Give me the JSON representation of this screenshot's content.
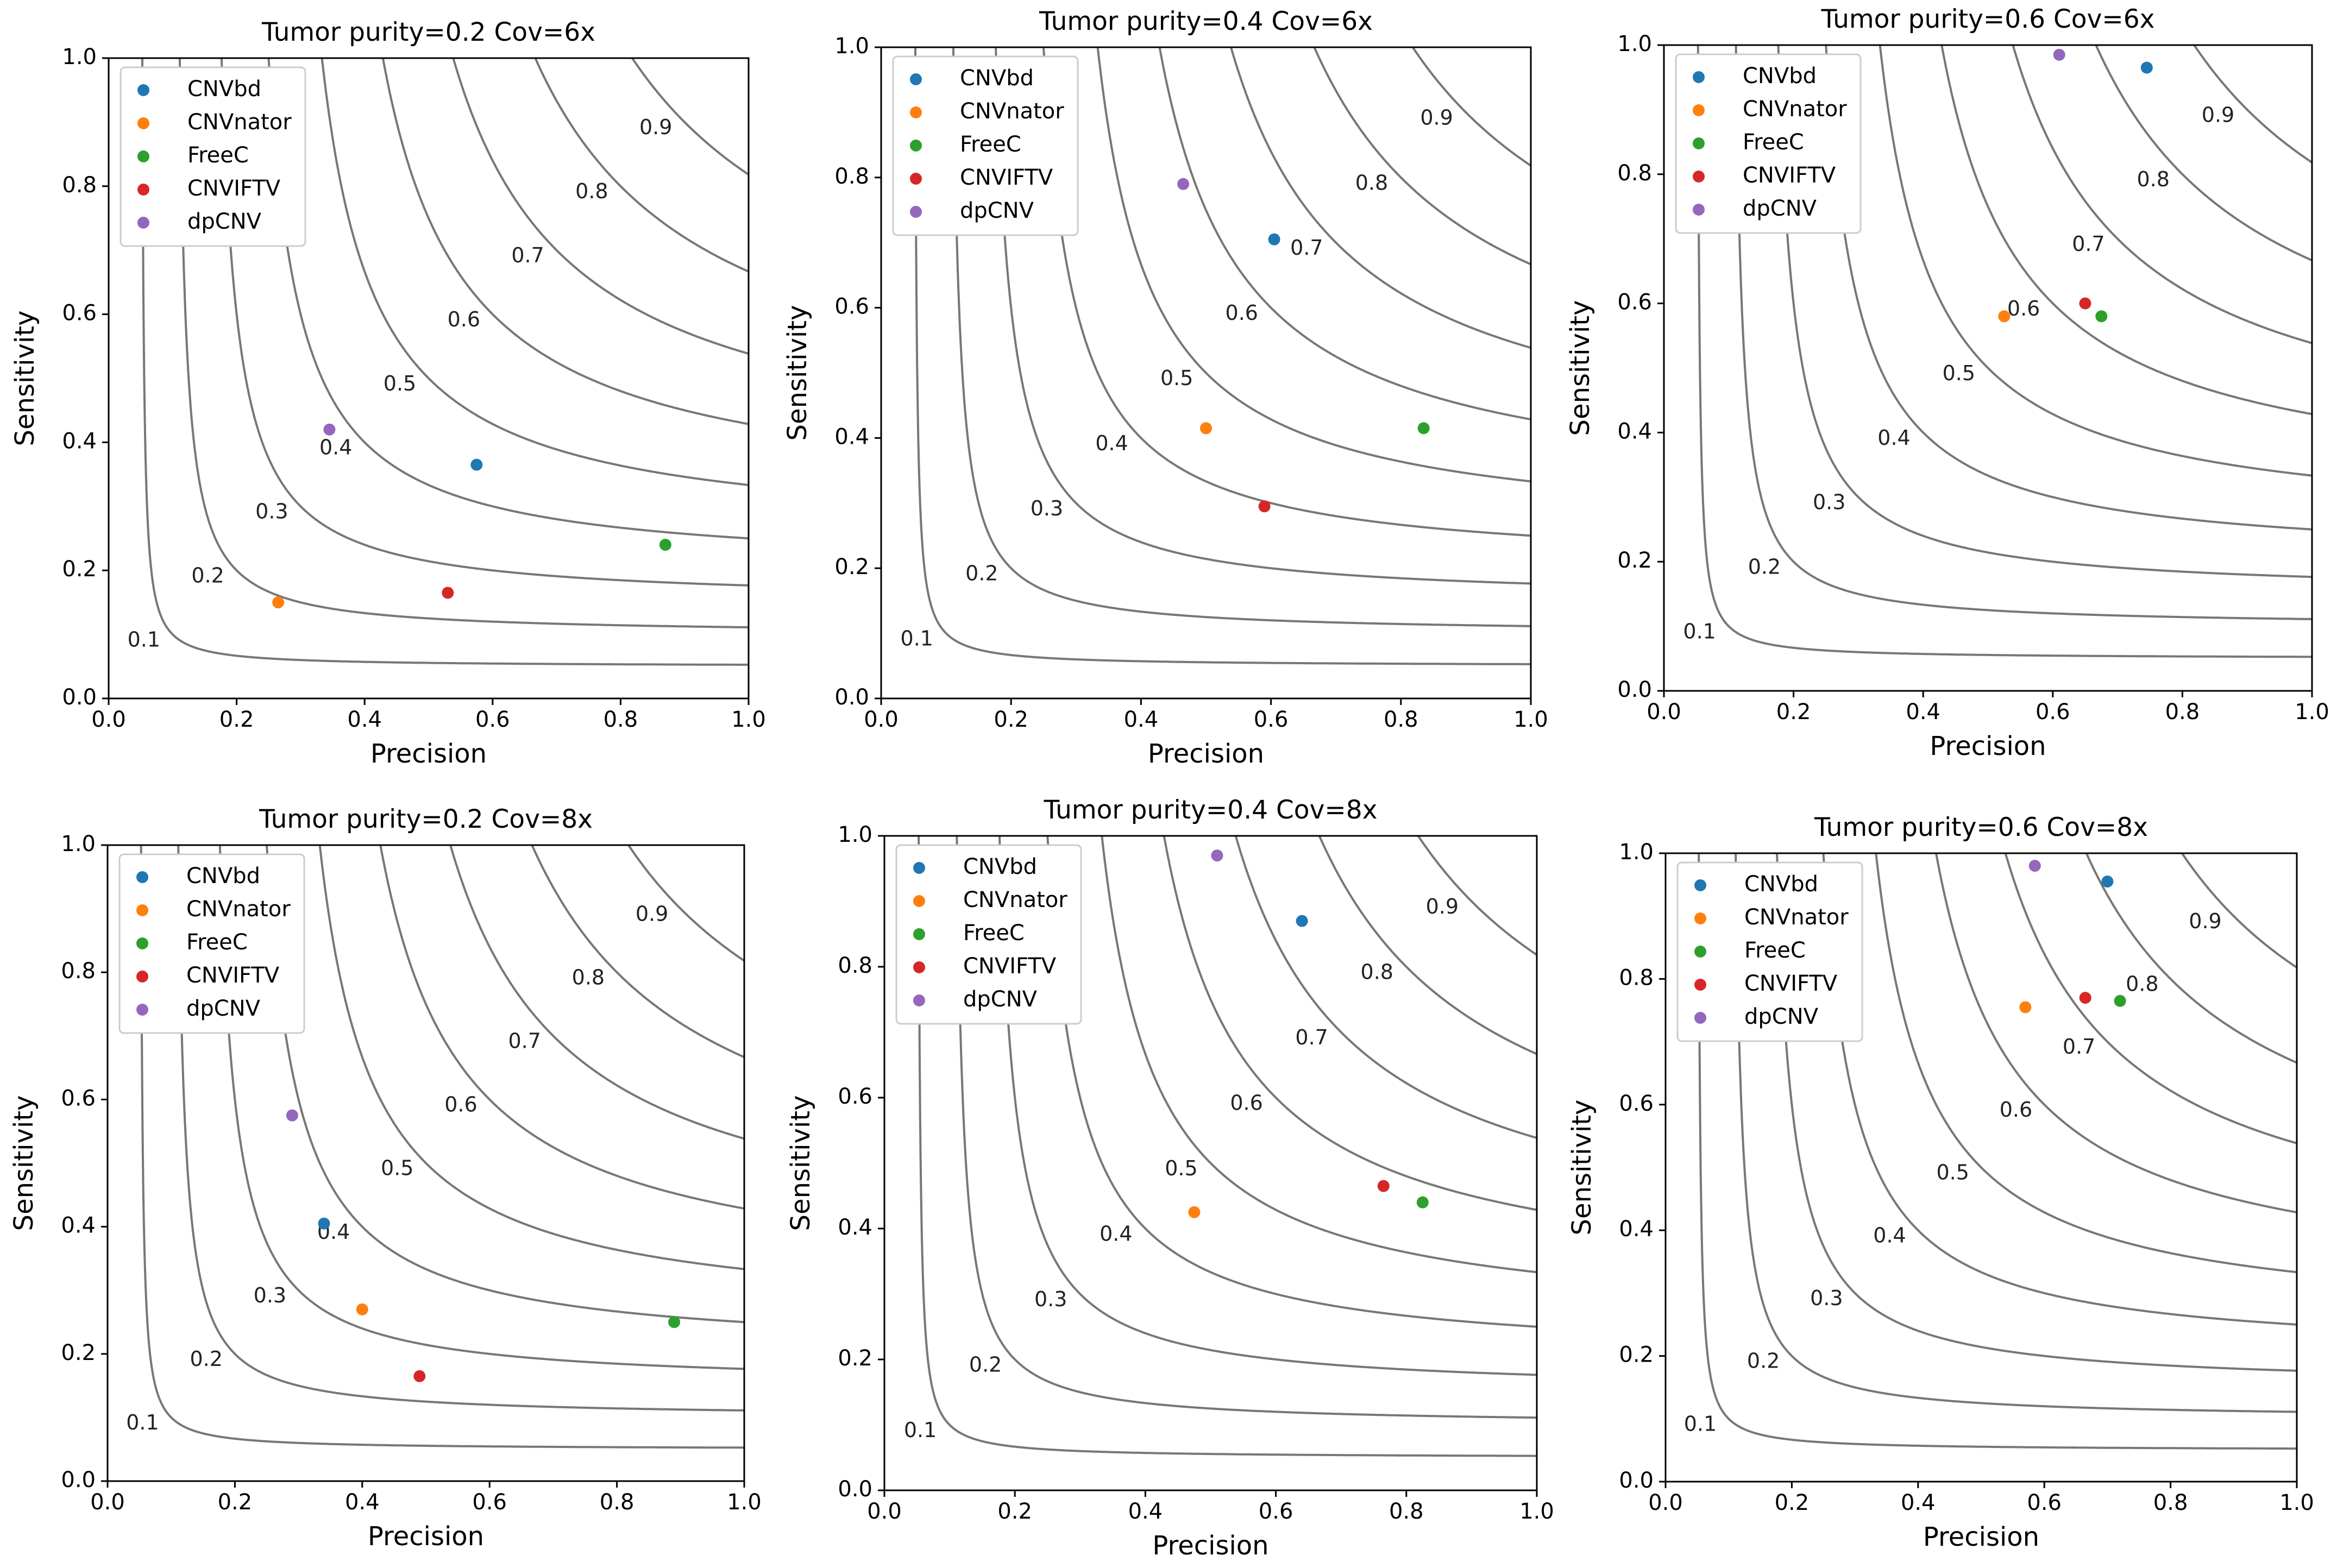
{
  "chart_data": [
    {
      "type": "scatter",
      "title": "Tumor purity=0.2   Cov=6x",
      "xlabel": "Precision",
      "ylabel": "Sensitivity",
      "xlim": [
        0,
        1
      ],
      "ylim": [
        0,
        1
      ],
      "xticks": [
        "0.0",
        "0.2",
        "0.4",
        "0.6",
        "0.8",
        "1.0"
      ],
      "yticks": [
        "0.0",
        "0.2",
        "0.4",
        "0.6",
        "0.8",
        "1.0"
      ],
      "contour_levels": [
        0.1,
        0.2,
        0.3,
        0.4,
        0.5,
        0.6,
        0.7,
        0.8,
        0.9
      ],
      "contour_labels": [
        "0.1",
        "0.2",
        "0.3",
        "0.4",
        "0.5",
        "0.6",
        "0.7",
        "0.8",
        "0.9"
      ],
      "legend_position": "top-left",
      "series": [
        {
          "name": "CNVbd",
          "color": "#1f77b4",
          "x": 0.575,
          "y": 0.365
        },
        {
          "name": "CNVnator",
          "color": "#ff7f0e",
          "x": 0.265,
          "y": 0.15
        },
        {
          "name": "FreeC",
          "color": "#2ca02c",
          "x": 0.87,
          "y": 0.24
        },
        {
          "name": "CNVIFTV",
          "color": "#d62728",
          "x": 0.53,
          "y": 0.165
        },
        {
          "name": "dpCNV",
          "color": "#9467bd",
          "x": 0.345,
          "y": 0.42
        }
      ]
    },
    {
      "type": "scatter",
      "title": "Tumor purity=0.4   Cov=6x",
      "xlabel": "Precision",
      "ylabel": "Sensitivity",
      "xlim": [
        0,
        1
      ],
      "ylim": [
        0,
        1
      ],
      "xticks": [
        "0.0",
        "0.2",
        "0.4",
        "0.6",
        "0.8",
        "1.0"
      ],
      "yticks": [
        "0.0",
        "0.2",
        "0.4",
        "0.6",
        "0.8",
        "1.0"
      ],
      "contour_levels": [
        0.1,
        0.2,
        0.3,
        0.4,
        0.5,
        0.6,
        0.7,
        0.8,
        0.9
      ],
      "contour_labels": [
        "0.1",
        "0.2",
        "0.3",
        "0.4",
        "0.5",
        "0.6",
        "0.7",
        "0.8",
        "0.9"
      ],
      "legend_position": "top-left",
      "series": [
        {
          "name": "CNVbd",
          "color": "#1f77b4",
          "x": 0.605,
          "y": 0.705
        },
        {
          "name": "CNVnator",
          "color": "#ff7f0e",
          "x": 0.5,
          "y": 0.415
        },
        {
          "name": "FreeC",
          "color": "#2ca02c",
          "x": 0.835,
          "y": 0.415
        },
        {
          "name": "CNVIFTV",
          "color": "#d62728",
          "x": 0.59,
          "y": 0.295
        },
        {
          "name": "dpCNV",
          "color": "#9467bd",
          "x": 0.465,
          "y": 0.79
        }
      ]
    },
    {
      "type": "scatter",
      "title": "Tumor purity=0.6   Cov=6x",
      "xlabel": "Precision",
      "ylabel": "Sensitivity",
      "xlim": [
        0,
        1
      ],
      "ylim": [
        0,
        1
      ],
      "xticks": [
        "0.0",
        "0.2",
        "0.4",
        "0.6",
        "0.8",
        "1.0"
      ],
      "yticks": [
        "0.0",
        "0.2",
        "0.4",
        "0.6",
        "0.8",
        "1.0"
      ],
      "contour_levels": [
        0.1,
        0.2,
        0.3,
        0.4,
        0.5,
        0.6,
        0.7,
        0.8,
        0.9
      ],
      "contour_labels": [
        "0.1",
        "0.2",
        "0.3",
        "0.4",
        "0.5",
        "0.6",
        "0.7",
        "0.8",
        "0.9"
      ],
      "legend_position": "top-left",
      "series": [
        {
          "name": "CNVbd",
          "color": "#1f77b4",
          "x": 0.745,
          "y": 0.965
        },
        {
          "name": "CNVnator",
          "color": "#ff7f0e",
          "x": 0.525,
          "y": 0.58
        },
        {
          "name": "FreeC",
          "color": "#2ca02c",
          "x": 0.675,
          "y": 0.58
        },
        {
          "name": "CNVIFTV",
          "color": "#d62728",
          "x": 0.65,
          "y": 0.6
        },
        {
          "name": "dpCNV",
          "color": "#9467bd",
          "x": 0.61,
          "y": 0.985
        }
      ]
    },
    {
      "type": "scatter",
      "title": "Tumor purity=0.2   Cov=8x",
      "xlabel": "Precision",
      "ylabel": "Sensitivity",
      "xlim": [
        0,
        1
      ],
      "ylim": [
        0,
        1
      ],
      "xticks": [
        "0.0",
        "0.2",
        "0.4",
        "0.6",
        "0.8",
        "1.0"
      ],
      "yticks": [
        "0.0",
        "0.2",
        "0.4",
        "0.6",
        "0.8",
        "1.0"
      ],
      "contour_levels": [
        0.1,
        0.2,
        0.3,
        0.4,
        0.5,
        0.6,
        0.7,
        0.8,
        0.9
      ],
      "contour_labels": [
        "0.1",
        "0.2",
        "0.3",
        "0.4",
        "0.5",
        "0.6",
        "0.7",
        "0.8",
        "0.9"
      ],
      "legend_position": "top-left",
      "series": [
        {
          "name": "CNVbd",
          "color": "#1f77b4",
          "x": 0.34,
          "y": 0.405
        },
        {
          "name": "CNVnator",
          "color": "#ff7f0e",
          "x": 0.4,
          "y": 0.27
        },
        {
          "name": "FreeC",
          "color": "#2ca02c",
          "x": 0.89,
          "y": 0.25
        },
        {
          "name": "CNVIFTV",
          "color": "#d62728",
          "x": 0.49,
          "y": 0.165
        },
        {
          "name": "dpCNV",
          "color": "#9467bd",
          "x": 0.29,
          "y": 0.575
        }
      ]
    },
    {
      "type": "scatter",
      "title": "Tumor purity=0.4   Cov=8x",
      "xlabel": "Precision",
      "ylabel": "Sensitivity",
      "xlim": [
        0,
        1
      ],
      "ylim": [
        0,
        1
      ],
      "xticks": [
        "0.0",
        "0.2",
        "0.4",
        "0.6",
        "0.8",
        "1.0"
      ],
      "yticks": [
        "0.0",
        "0.2",
        "0.4",
        "0.6",
        "0.8",
        "1.0"
      ],
      "contour_levels": [
        0.1,
        0.2,
        0.3,
        0.4,
        0.5,
        0.6,
        0.7,
        0.8,
        0.9
      ],
      "contour_labels": [
        "0.1",
        "0.2",
        "0.3",
        "0.4",
        "0.5",
        "0.6",
        "0.7",
        "0.8",
        "0.9"
      ],
      "legend_position": "top-left",
      "series": [
        {
          "name": "CNVbd",
          "color": "#1f77b4",
          "x": 0.64,
          "y": 0.87
        },
        {
          "name": "CNVnator",
          "color": "#ff7f0e",
          "x": 0.475,
          "y": 0.425
        },
        {
          "name": "FreeC",
          "color": "#2ca02c",
          "x": 0.825,
          "y": 0.44
        },
        {
          "name": "CNVIFTV",
          "color": "#d62728",
          "x": 0.765,
          "y": 0.465
        },
        {
          "name": "dpCNV",
          "color": "#9467bd",
          "x": 0.51,
          "y": 0.97
        }
      ]
    },
    {
      "type": "scatter",
      "title": "Tumor purity=0.6   Cov=8x",
      "xlabel": "Precision",
      "ylabel": "Sensitivity",
      "xlim": [
        0,
        1
      ],
      "ylim": [
        0,
        1
      ],
      "xticks": [
        "0.0",
        "0.2",
        "0.4",
        "0.6",
        "0.8",
        "1.0"
      ],
      "yticks": [
        "0.0",
        "0.2",
        "0.4",
        "0.6",
        "0.8",
        "1.0"
      ],
      "contour_levels": [
        0.1,
        0.2,
        0.3,
        0.4,
        0.5,
        0.6,
        0.7,
        0.8,
        0.9
      ],
      "contour_labels": [
        "0.1",
        "0.2",
        "0.3",
        "0.4",
        "0.5",
        "0.6",
        "0.7",
        "0.8",
        "0.9"
      ],
      "legend_position": "top-left",
      "series": [
        {
          "name": "CNVbd",
          "color": "#1f77b4",
          "x": 0.7,
          "y": 0.955
        },
        {
          "name": "CNVnator",
          "color": "#ff7f0e",
          "x": 0.57,
          "y": 0.755
        },
        {
          "name": "FreeC",
          "color": "#2ca02c",
          "x": 0.72,
          "y": 0.765
        },
        {
          "name": "CNVIFTV",
          "color": "#d62728",
          "x": 0.665,
          "y": 0.77
        },
        {
          "name": "dpCNV",
          "color": "#9467bd",
          "x": 0.585,
          "y": 0.98
        }
      ]
    }
  ]
}
